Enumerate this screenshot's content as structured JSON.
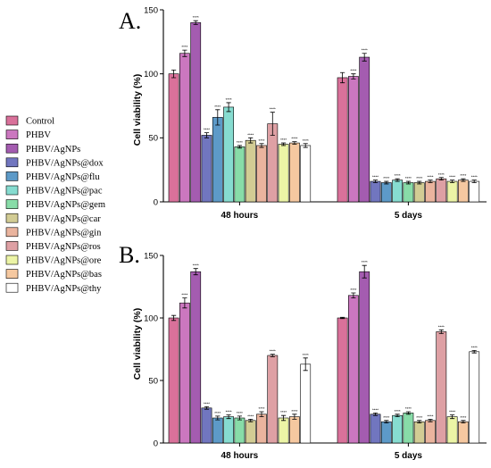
{
  "chart_data": [
    {
      "type": "bar",
      "panel_label": "A.",
      "ylabel": "Cell viability (%)",
      "ylim": [
        0,
        150
      ],
      "yticks": [
        0,
        50,
        100,
        150
      ],
      "categories": [
        "48 hours",
        "5 days"
      ],
      "series": [
        {
          "name": "Control",
          "values": [
            100,
            97
          ],
          "errors": [
            3,
            4
          ],
          "annotations": [
            "",
            ""
          ]
        },
        {
          "name": "PHBV",
          "values": [
            116,
            98
          ],
          "errors": [
            2.5,
            2
          ],
          "annotations": [
            "****",
            "****"
          ]
        },
        {
          "name": "PHBV/AgNPs",
          "values": [
            140,
            113
          ],
          "errors": [
            1.5,
            3
          ],
          "annotations": [
            "****",
            "****"
          ]
        },
        {
          "name": "PHBV/AgNPs@dox",
          "values": [
            52,
            16
          ],
          "errors": [
            2,
            1
          ],
          "annotations": [
            "****",
            "****"
          ]
        },
        {
          "name": "PHBV/AgNPs@flu",
          "values": [
            66,
            15
          ],
          "errors": [
            6,
            1
          ],
          "annotations": [
            "****",
            "****"
          ]
        },
        {
          "name": "PHBV/AgNPs@pac",
          "values": [
            74,
            17
          ],
          "errors": [
            3.5,
            1
          ],
          "annotations": [
            "****",
            "****"
          ]
        },
        {
          "name": "PHBV/AgNPs@gem",
          "values": [
            43,
            15
          ],
          "errors": [
            1,
            1
          ],
          "annotations": [
            "****",
            "****"
          ]
        },
        {
          "name": "PHBV/AgNPs@car",
          "values": [
            48,
            15
          ],
          "errors": [
            2,
            1
          ],
          "annotations": [
            "****",
            "****"
          ]
        },
        {
          "name": "PHBV/AgNPs@gin",
          "values": [
            44,
            16
          ],
          "errors": [
            1.5,
            1
          ],
          "annotations": [
            "****",
            "****"
          ]
        },
        {
          "name": "PHBV/AgNPs@ros",
          "values": [
            61,
            18
          ],
          "errors": [
            9,
            1
          ],
          "annotations": [
            "****",
            "****"
          ]
        },
        {
          "name": "PHBV/AgNPs@ore",
          "values": [
            45,
            16
          ],
          "errors": [
            1,
            1
          ],
          "annotations": [
            "****",
            "****"
          ]
        },
        {
          "name": "PHBV/AgNPs@bas",
          "values": [
            46,
            17
          ],
          "errors": [
            1,
            1
          ],
          "annotations": [
            "****",
            "****"
          ]
        },
        {
          "name": "PHBV/AgNPs@thy",
          "values": [
            44,
            16
          ],
          "errors": [
            1.5,
            1
          ],
          "annotations": [
            "****",
            "****"
          ]
        }
      ]
    },
    {
      "type": "bar",
      "panel_label": "B.",
      "ylabel": "Cell viability (%)",
      "ylim": [
        0,
        150
      ],
      "yticks": [
        0,
        50,
        100,
        150
      ],
      "categories": [
        "48 hours",
        "5 days"
      ],
      "series": [
        {
          "name": "Control",
          "values": [
            100,
            100
          ],
          "errors": [
            2,
            0.5
          ],
          "annotations": [
            "",
            ""
          ]
        },
        {
          "name": "PHBV",
          "values": [
            112,
            118
          ],
          "errors": [
            4,
            2
          ],
          "annotations": [
            "****",
            "****"
          ]
        },
        {
          "name": "PHBV/AgNPs",
          "values": [
            137,
            137
          ],
          "errors": [
            2.5,
            5
          ],
          "annotations": [
            "****",
            "****"
          ]
        },
        {
          "name": "PHBV/AgNPs@dox",
          "values": [
            28,
            23
          ],
          "errors": [
            1,
            1
          ],
          "annotations": [
            "****",
            "****"
          ]
        },
        {
          "name": "PHBV/AgNPs@flu",
          "values": [
            20,
            17
          ],
          "errors": [
            1.5,
            1
          ],
          "annotations": [
            "****",
            "****"
          ]
        },
        {
          "name": "PHBV/AgNPs@pac",
          "values": [
            21,
            22
          ],
          "errors": [
            1.5,
            1
          ],
          "annotations": [
            "****",
            "****"
          ]
        },
        {
          "name": "PHBV/AgNPs@gem",
          "values": [
            20,
            24
          ],
          "errors": [
            1.5,
            1
          ],
          "annotations": [
            "****",
            "****"
          ]
        },
        {
          "name": "PHBV/AgNPs@car",
          "values": [
            18,
            17
          ],
          "errors": [
            1,
            1
          ],
          "annotations": [
            "****",
            "****"
          ]
        },
        {
          "name": "PHBV/AgNPs@gin",
          "values": [
            23,
            18
          ],
          "errors": [
            2,
            1
          ],
          "annotations": [
            "****",
            "****"
          ]
        },
        {
          "name": "PHBV/AgNPs@ros",
          "values": [
            70,
            89
          ],
          "errors": [
            1,
            1.5
          ],
          "annotations": [
            "****",
            "****"
          ]
        },
        {
          "name": "PHBV/AgNPs@ore",
          "values": [
            20,
            21
          ],
          "errors": [
            2,
            1.5
          ],
          "annotations": [
            "****",
            "****"
          ]
        },
        {
          "name": "PHBV/AgNPs@bas",
          "values": [
            21,
            17
          ],
          "errors": [
            2,
            1
          ],
          "annotations": [
            "****",
            "****"
          ]
        },
        {
          "name": "PHBV/AgNPs@thy",
          "values": [
            63,
            73
          ],
          "errors": [
            5,
            1
          ],
          "annotations": [
            "****",
            "****"
          ]
        }
      ]
    }
  ],
  "legend": {
    "placement": "left",
    "entries": [
      {
        "label": "Control",
        "color": "#d9719a"
      },
      {
        "label": "PHBV",
        "color": "#cb77bf"
      },
      {
        "label": "PHBV/AgNPs",
        "color": "#a45cb0"
      },
      {
        "label": "PHBV/AgNPs@dox",
        "color": "#7176bf"
      },
      {
        "label": "PHBV/AgNPs@flu",
        "color": "#5d9ac8"
      },
      {
        "label": "PHBV/AgNPs@pac",
        "color": "#86dcd0"
      },
      {
        "label": "PHBV/AgNPs@gem",
        "color": "#88dca8"
      },
      {
        "label": "PHBV/AgNPs@car",
        "color": "#d2cc94"
      },
      {
        "label": "PHBV/AgNPs@gin",
        "color": "#eab49e"
      },
      {
        "label": "PHBV/AgNPs@ros",
        "color": "#dea0a4"
      },
      {
        "label": "PHBV/AgNPs@ore",
        "color": "#ecf4a6"
      },
      {
        "label": "PHBV/AgNPs@bas",
        "color": "#f5c8a0"
      },
      {
        "label": "PHBV/AgNPs@thy",
        "color": "#ffffff"
      }
    ]
  }
}
